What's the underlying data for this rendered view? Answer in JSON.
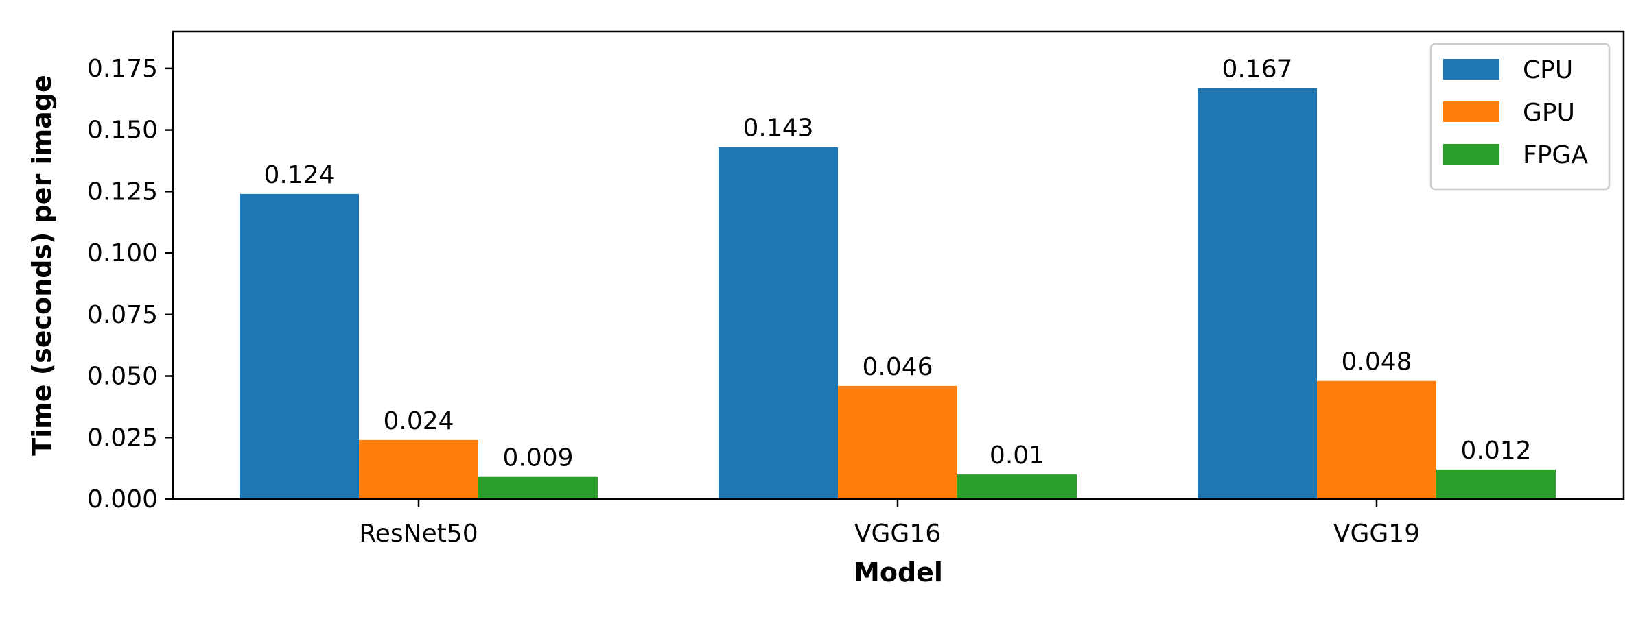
{
  "chart_data": {
    "type": "bar",
    "categories": [
      "ResNet50",
      "VGG16",
      "VGG19"
    ],
    "series": [
      {
        "name": "CPU",
        "color": "#1f77b4",
        "values": [
          0.124,
          0.143,
          0.167
        ],
        "labels": [
          "0.124",
          "0.143",
          "0.167"
        ]
      },
      {
        "name": "GPU",
        "color": "#ff7f0e",
        "values": [
          0.024,
          0.046,
          0.048
        ],
        "labels": [
          "0.024",
          "0.046",
          "0.048"
        ]
      },
      {
        "name": "FPGA",
        "color": "#2ca02c",
        "values": [
          0.009,
          0.01,
          0.012
        ],
        "labels": [
          "0.009",
          "0.01",
          "0.012"
        ]
      }
    ],
    "xlabel": "Model",
    "ylabel": "Time (seconds) per image",
    "ylim": [
      0,
      0.19
    ],
    "yticks": [
      0.0,
      0.025,
      0.05,
      0.075,
      0.1,
      0.125,
      0.15,
      0.175
    ],
    "ytick_labels": [
      "0.000",
      "0.025",
      "0.050",
      "0.075",
      "0.100",
      "0.125",
      "0.150",
      "0.175"
    ],
    "grid": false,
    "legend_position": "top-right"
  }
}
